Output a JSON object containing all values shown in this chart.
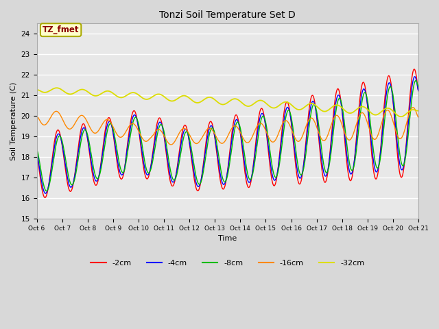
{
  "title": "Tonzi Soil Temperature Set D",
  "xlabel": "Time",
  "ylabel": "Soil Temperature (C)",
  "ylim": [
    15.0,
    24.5
  ],
  "yticks": [
    15.0,
    16.0,
    17.0,
    18.0,
    19.0,
    20.0,
    21.0,
    22.0,
    23.0,
    24.0
  ],
  "legend_label": "TZ_fmet",
  "series_colors": {
    "-2cm": "#ff0000",
    "-4cm": "#0000ff",
    "-8cm": "#00bb00",
    "-16cm": "#ff8800",
    "-32cm": "#dddd00"
  },
  "fig_bg": "#d8d8d8",
  "plot_bg": "#e8e8e8",
  "x_start": 6.0,
  "x_end": 21.0,
  "xtick_days": [
    6,
    7,
    8,
    9,
    10,
    11,
    12,
    13,
    14,
    15,
    16,
    17,
    18,
    19,
    20,
    21
  ]
}
